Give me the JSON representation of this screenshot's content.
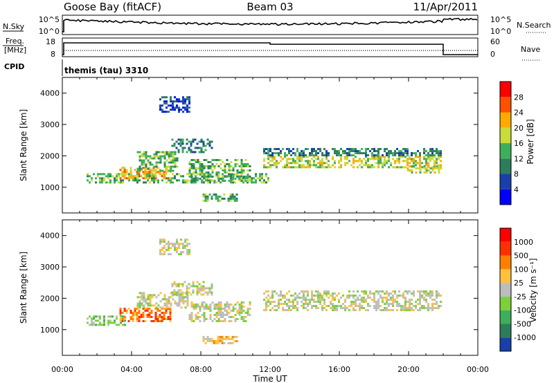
{
  "header": {
    "station": "Goose Bay (fitACF)",
    "beam": "Beam 03",
    "date": "11/Apr/2011"
  },
  "strip_panels": {
    "nsky": {
      "left_label": "N.Sky",
      "right_label": "N.Search",
      "left_ticks": [
        "10^5",
        "10^0"
      ],
      "right_ticks": [
        "10^5",
        "10^0"
      ]
    },
    "freq": {
      "left_label_line1": "Freq.",
      "left_label_line2": "[MHz]",
      "right_label": "Nave",
      "left_ticks": [
        "18",
        "8"
      ],
      "right_ticks": [
        "60",
        "0"
      ]
    },
    "cpid": {
      "label": "CPID",
      "value": "themis (tau) 3310"
    }
  },
  "chart_data": [
    {
      "type": "heatmap",
      "name": "power",
      "ylabel": "Slant Range [km]",
      "yticks": [
        1000,
        2000,
        3000,
        4000
      ],
      "ylim": [
        180,
        4500
      ],
      "xlim": [
        0,
        24
      ],
      "colorbar": {
        "label": "Power [dB]",
        "ticks": [
          "4",
          "8",
          "12",
          "16",
          "20",
          "24",
          "28"
        ],
        "colors": [
          "#0000ff",
          "#1a3fa8",
          "#2e7d5a",
          "#3fae5a",
          "#c8dc3a",
          "#ffaa00",
          "#ff5000",
          "#ff0000"
        ]
      },
      "regions": [
        {
          "t": [
            1.4,
            11.9
          ],
          "r": [
            1150,
            1450
          ],
          "level": 3
        },
        {
          "t": [
            3.3,
            6.3
          ],
          "r": [
            1300,
            1650
          ],
          "level": 5
        },
        {
          "t": [
            4.3,
            6.6
          ],
          "r": [
            1500,
            2150
          ],
          "level": 3
        },
        {
          "t": [
            6.3,
            8.6
          ],
          "r": [
            2150,
            2550
          ],
          "level": 2
        },
        {
          "t": [
            7.3,
            10.9
          ],
          "r": [
            1200,
            1900
          ],
          "level": 3
        },
        {
          "t": [
            8.1,
            10.1
          ],
          "r": [
            600,
            800
          ],
          "level": 3
        },
        {
          "t": [
            11.6,
            21.9
          ],
          "r": [
            1650,
            2000
          ],
          "level": 4
        },
        {
          "t": [
            11.6,
            21.9
          ],
          "r": [
            2000,
            2250
          ],
          "level": 2
        },
        {
          "t": [
            19.9,
            21.9
          ],
          "r": [
            1450,
            1700
          ],
          "level": 4
        },
        {
          "t": [
            5.6,
            7.3
          ],
          "r": [
            3400,
            3900
          ],
          "level": 1
        }
      ]
    },
    {
      "type": "heatmap",
      "name": "velocity",
      "ylabel": "Slant Range [km]",
      "yticks": [
        1000,
        2000,
        3000,
        4000
      ],
      "ylim": [
        180,
        4500
      ],
      "xlim": [
        0,
        24
      ],
      "xlabel": "Time UT",
      "xticks": [
        "00:00",
        "04:00",
        "08:00",
        "12:00",
        "16:00",
        "20:00",
        "00:00"
      ],
      "colorbar": {
        "label": "Velocity [m s⁻¹]",
        "ticks": [
          "1000",
          "500",
          "100",
          "25",
          "-25",
          "-100",
          "-500",
          "-1000"
        ],
        "colors": [
          "#1a3fa8",
          "#2e7d5a",
          "#3fae5a",
          "#7cd03a",
          "#bdbdbd",
          "#ffc040",
          "#ff8000",
          "#ff3000",
          "#ff0000"
        ]
      },
      "regions": [
        {
          "t": [
            1.4,
            3.6
          ],
          "r": [
            1150,
            1450
          ],
          "level": 3
        },
        {
          "t": [
            3.3,
            6.3
          ],
          "r": [
            1300,
            1700
          ],
          "level": 6
        },
        {
          "t": [
            4.3,
            7.3
          ],
          "r": [
            1700,
            2200
          ],
          "level": 4
        },
        {
          "t": [
            6.3,
            8.6
          ],
          "r": [
            2100,
            2550
          ],
          "level": 4
        },
        {
          "t": [
            7.3,
            10.9
          ],
          "r": [
            1250,
            1900
          ],
          "level": 4
        },
        {
          "t": [
            8.1,
            10.1
          ],
          "r": [
            600,
            800
          ],
          "level": 5
        },
        {
          "t": [
            11.6,
            21.9
          ],
          "r": [
            1600,
            2250
          ],
          "level": 4
        },
        {
          "t": [
            5.6,
            7.3
          ],
          "r": [
            3400,
            3900
          ],
          "level": 4
        }
      ]
    }
  ]
}
